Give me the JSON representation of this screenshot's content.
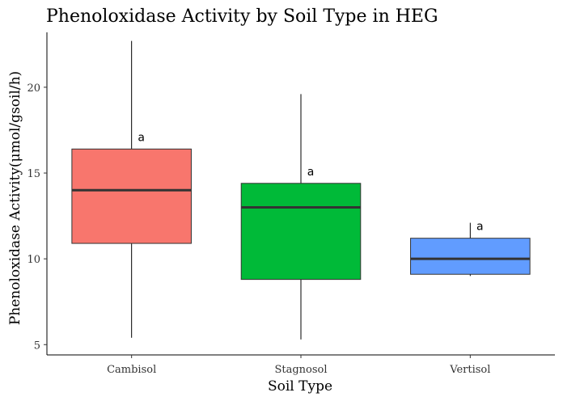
{
  "chart_data": {
    "type": "boxplot",
    "title": "Phenoloxidase Activity by Soil Type in HEG",
    "xlabel": "Soil Type",
    "ylabel": "Phenoloxidase Activity(μmol/gsoil/h)",
    "ylim": [
      4.4,
      23.2
    ],
    "yticks": [
      5,
      10,
      15,
      20
    ],
    "grid": false,
    "categories": [
      "Cambisol",
      "Stagnosol",
      "Vertisol"
    ],
    "series": [
      {
        "category": "Cambisol",
        "min": 5.4,
        "q1": 10.9,
        "median": 14.0,
        "q3": 16.4,
        "max": 22.7,
        "color": "#F8766D",
        "label": "a"
      },
      {
        "category": "Stagnosol",
        "min": 5.3,
        "q1": 8.8,
        "median": 13.0,
        "q3": 14.4,
        "max": 19.6,
        "color": "#00BA38",
        "label": "a"
      },
      {
        "category": "Vertisol",
        "min": 9.0,
        "q1": 9.1,
        "median": 10.0,
        "q3": 11.2,
        "max": 12.1,
        "color": "#619CFF",
        "label": "a"
      }
    ]
  }
}
